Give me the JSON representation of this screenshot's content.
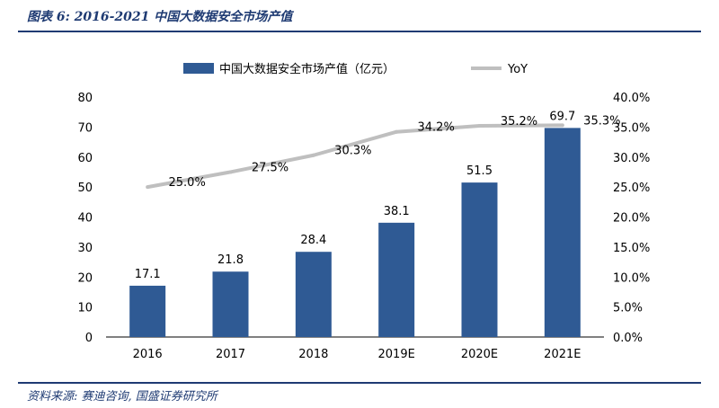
{
  "figure": {
    "title": "图表 6:  2016-2021 中国大数据安全市场产值",
    "source": "资料来源:  赛迪咨询,  国盛证券研究所"
  },
  "colors": {
    "bar": "#2f5a94",
    "line": "#bfbfbf",
    "rule": "#1f3b73"
  },
  "chart_data": {
    "type": "bar",
    "title": "",
    "categories": [
      "2016",
      "2017",
      "2018",
      "2019E",
      "2020E",
      "2021E"
    ],
    "series": [
      {
        "name": "中国大数据安全市场产值（亿元）",
        "type": "bar",
        "axis": "left",
        "values": [
          17.1,
          21.8,
          28.4,
          38.1,
          51.5,
          69.7
        ],
        "labels": [
          "17.1",
          "21.8",
          "28.4",
          "38.1",
          "51.5",
          "69.7"
        ]
      },
      {
        "name": "YoY",
        "type": "line",
        "axis": "right",
        "values": [
          25.0,
          27.5,
          30.3,
          34.2,
          35.2,
          35.3
        ],
        "labels": [
          "25.0%",
          "27.5%",
          "30.3%",
          "34.2%",
          "35.2%",
          "35.3%"
        ]
      }
    ],
    "ylim": [
      0,
      80
    ],
    "yticks": [
      "0",
      "10",
      "20",
      "30",
      "40",
      "50",
      "60",
      "70",
      "80"
    ],
    "y2lim": [
      0,
      40
    ],
    "y2ticks": [
      "0.0%",
      "5.0%",
      "10.0%",
      "15.0%",
      "20.0%",
      "25.0%",
      "30.0%",
      "35.0%",
      "40.0%"
    ],
    "xlabel": "",
    "ylabel": "",
    "y2label": "",
    "legend": "top-center",
    "grid": false
  }
}
